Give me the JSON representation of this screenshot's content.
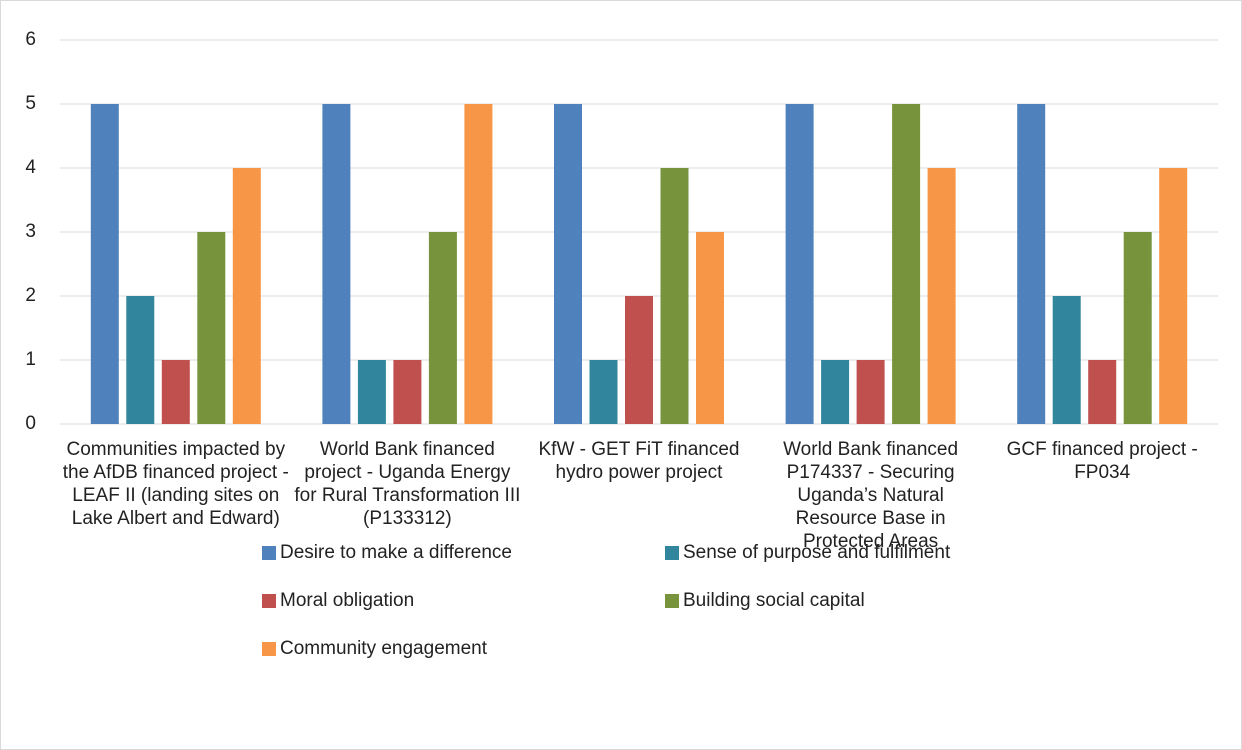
{
  "chart_data": {
    "type": "bar",
    "categories": [
      "Communities impacted by the AfDB financed project - LEAF II (landing sites on Lake Albert and Edward)",
      "World Bank financed project - Uganda Energy for Rural Transformation III (P133312)",
      "KfW - GET FiT financed hydro power project",
      "World Bank financed P174337 - Securing Uganda’s Natural Resource Base in Protected Areas",
      "GCF financed project - FP034"
    ],
    "series": [
      {
        "name": "Desire to make a difference",
        "color": "#4f81bd",
        "values": [
          5,
          5,
          5,
          5,
          5
        ]
      },
      {
        "name": "Sense of purpose and fulfilment",
        "color": "#31859c",
        "values": [
          2,
          1,
          1,
          1,
          2
        ]
      },
      {
        "name": "Moral obligation",
        "color": "#c0504d",
        "values": [
          1,
          1,
          2,
          1,
          1
        ]
      },
      {
        "name": "Building social capital",
        "color": "#77933c",
        "values": [
          3,
          3,
          4,
          5,
          3
        ]
      },
      {
        "name": "Community engagement",
        "color": "#f79646",
        "values": [
          4,
          5,
          3,
          4,
          4
        ]
      }
    ],
    "ylim": [
      0,
      6
    ],
    "yticks": [
      0,
      1,
      2,
      3,
      4,
      5,
      6
    ],
    "grid": true,
    "legend": "bottom"
  }
}
